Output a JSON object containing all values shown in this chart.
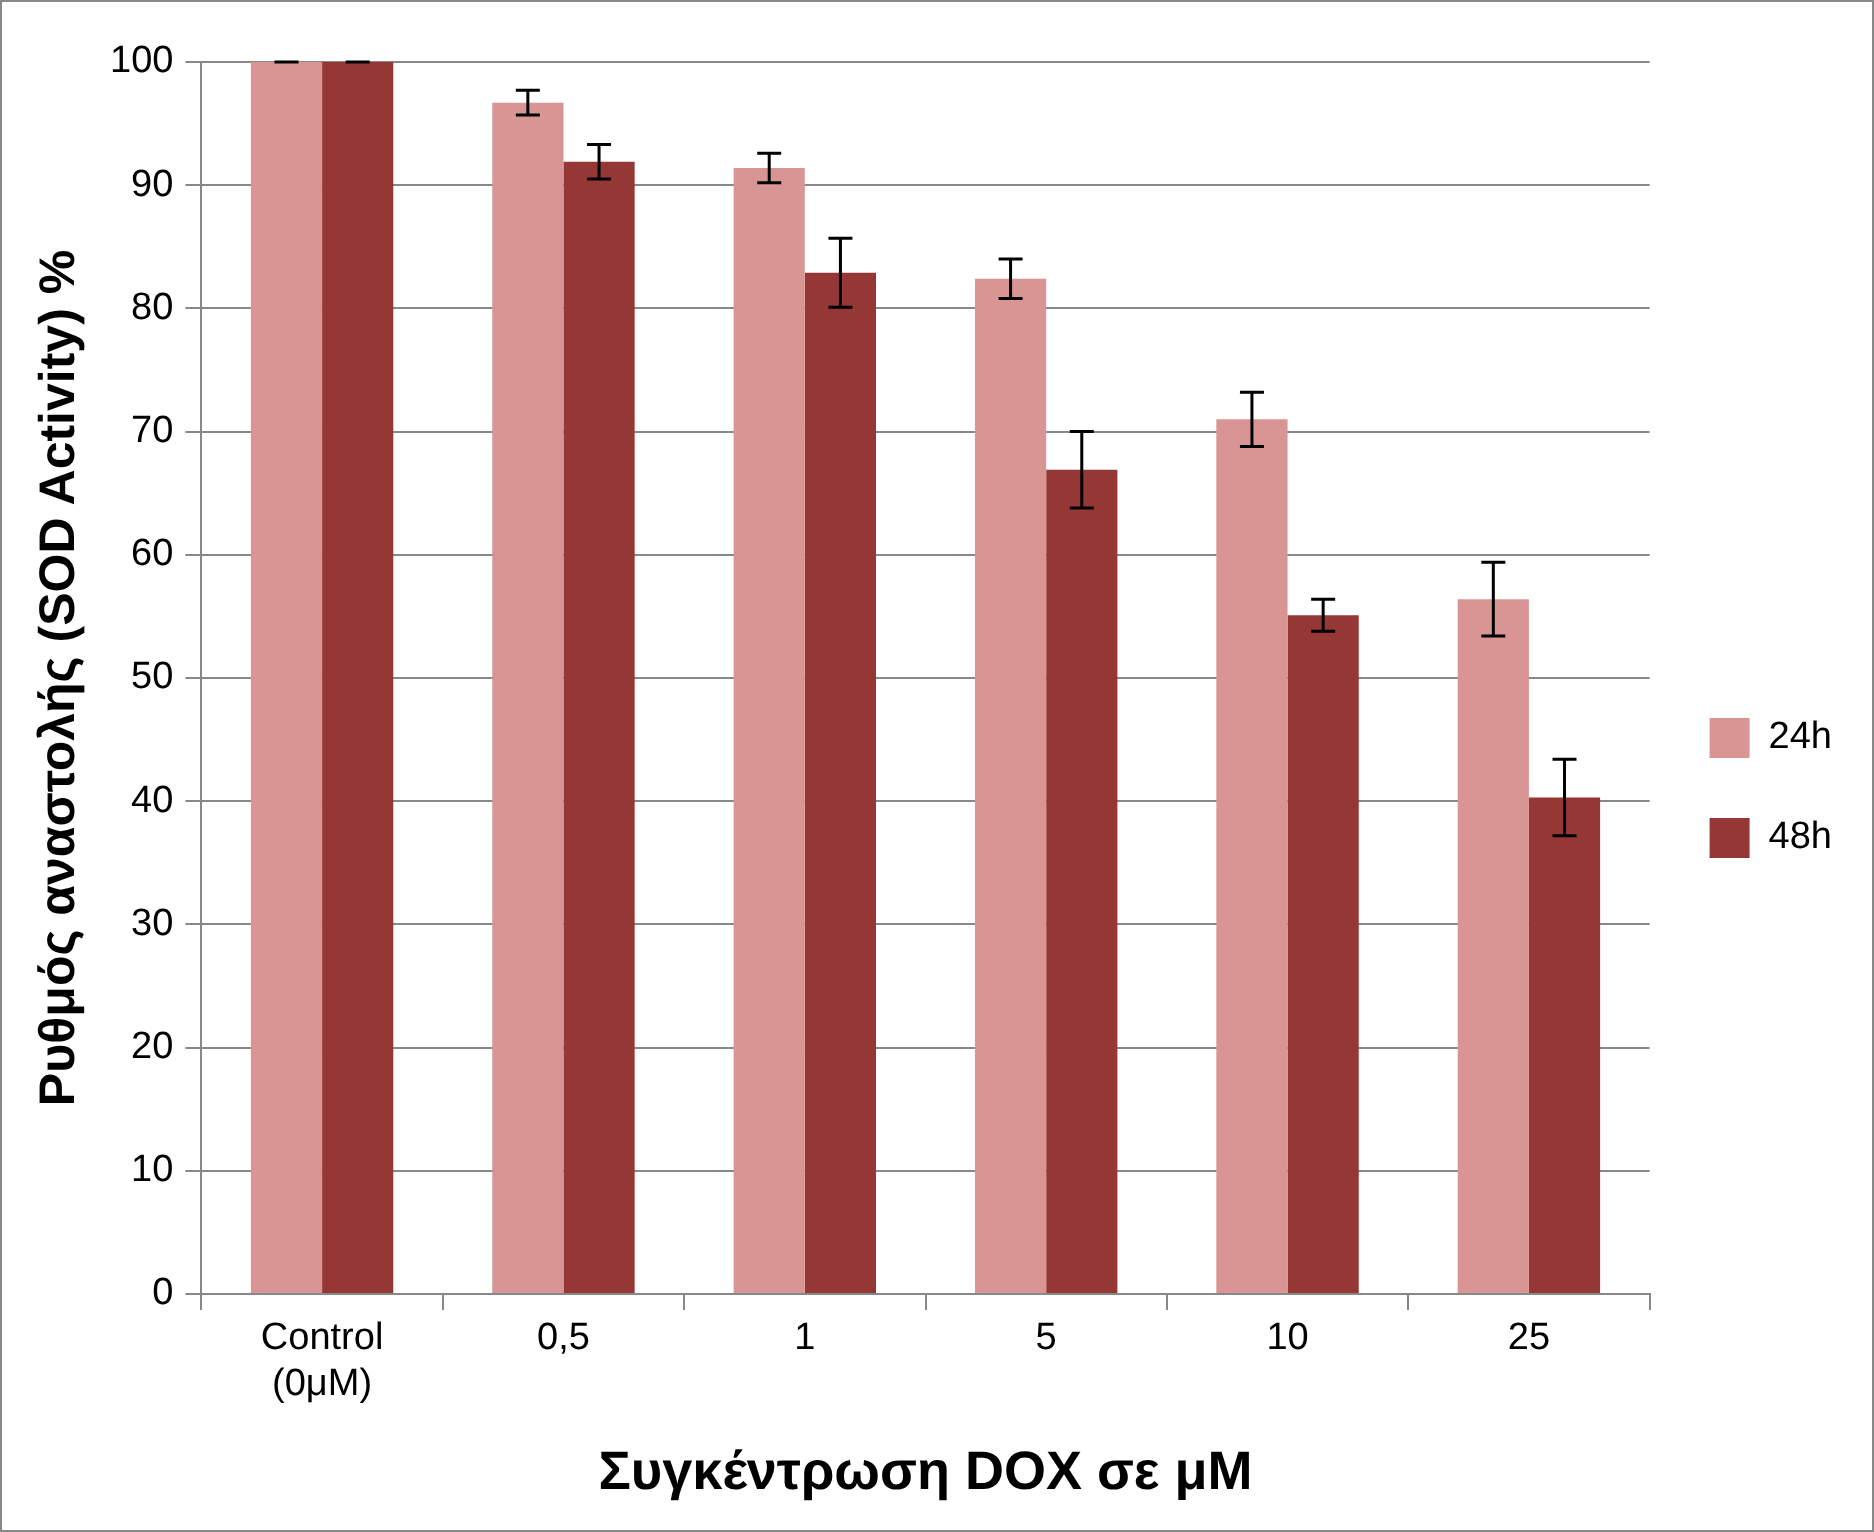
{
  "chart_data": {
    "type": "bar",
    "xlabel": "Συγκέντρωση DOX σε μM",
    "ylabel": "Ρυθμός αναστολής (SOD Activity) %",
    "categories": [
      "Control (0μM)",
      "0,5",
      "1",
      "5",
      "10",
      "25"
    ],
    "series": [
      {
        "name": "24h",
        "color": "#d99594",
        "values": [
          100,
          96.7,
          91.4,
          82.4,
          71.0,
          56.4
        ],
        "errors": [
          0,
          1,
          1.2,
          1.6,
          2.2,
          3
        ]
      },
      {
        "name": "48h",
        "color": "#953735",
        "values": [
          100,
          91.9,
          82.9,
          66.9,
          55.1,
          40.3
        ],
        "errors": [
          0,
          1.4,
          2.8,
          3.1,
          1.3,
          3.1
        ]
      }
    ],
    "ylim": [
      0,
      100
    ],
    "yticks": [
      0,
      10,
      20,
      30,
      40,
      50,
      60,
      70,
      80,
      90,
      100
    ],
    "grid": "y",
    "legend": "right"
  }
}
